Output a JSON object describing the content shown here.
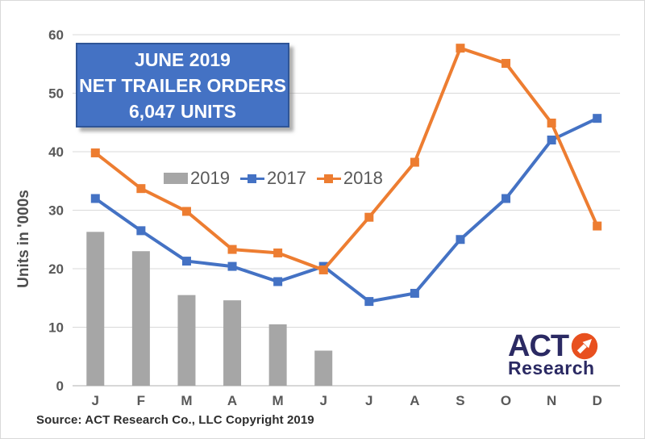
{
  "title_box": {
    "lines": [
      "JUNE 2019",
      "NET TRAILER ORDERS",
      "6,047 UNITS"
    ],
    "bg_color": "#4472C4",
    "border_color": "#2F5597",
    "text_color": "#FFFFFF"
  },
  "legend": {
    "items": [
      {
        "label": "2019",
        "color": "#A6A6A6",
        "swatch": "bar"
      },
      {
        "label": "2017",
        "color": "#4472C4",
        "swatch": "line-marker"
      },
      {
        "label": "2018",
        "color": "#ED7D31",
        "swatch": "line-marker"
      }
    ],
    "text_color": "#595959",
    "position": "inside-top-left-of-plot"
  },
  "axis": {
    "ylabel": "Units in '000s",
    "yticks": [
      0,
      10,
      20,
      30,
      40,
      50,
      60
    ],
    "tick_color": "#595959",
    "gridline_color": "#D9D9D9",
    "baseline_color": "#BFBFBF"
  },
  "source_note": "Source: ACT Research Co., LLC  Copyright 2019",
  "logo": {
    "text_top": "ACT",
    "text_bottom": "Research",
    "icon": "arrow-up-right-circle-icon",
    "navy": "#2B2A63",
    "orange": "#E8501F"
  },
  "chart_data": {
    "type": "combo-bar-line",
    "title": "JUNE 2019 NET TRAILER ORDERS 6,047 UNITS",
    "categories": [
      "J",
      "F",
      "M",
      "A",
      "M",
      "J",
      "J",
      "A",
      "S",
      "O",
      "N",
      "D"
    ],
    "series": [
      {
        "name": "2019",
        "type": "bar",
        "color": "#A6A6A6",
        "values": [
          26.3,
          23.0,
          15.5,
          14.6,
          10.5,
          6.0,
          null,
          null,
          null,
          null,
          null,
          null
        ]
      },
      {
        "name": "2017",
        "type": "line",
        "color": "#4472C4",
        "values": [
          32.0,
          26.5,
          21.3,
          20.4,
          17.8,
          20.4,
          14.4,
          15.8,
          25.0,
          32.0,
          42.0,
          45.7
        ]
      },
      {
        "name": "2018",
        "type": "line",
        "color": "#ED7D31",
        "values": [
          39.8,
          33.7,
          29.8,
          23.3,
          22.7,
          19.8,
          28.8,
          38.2,
          57.7,
          55.1,
          44.9,
          27.3
        ]
      }
    ],
    "xlabel": "",
    "ylabel": "Units in '000s",
    "ylim": [
      0,
      60
    ],
    "ytick_step": 10,
    "grid": "horizontal-only",
    "legend_position": "inside top, order: 2019, 2017, 2018"
  }
}
